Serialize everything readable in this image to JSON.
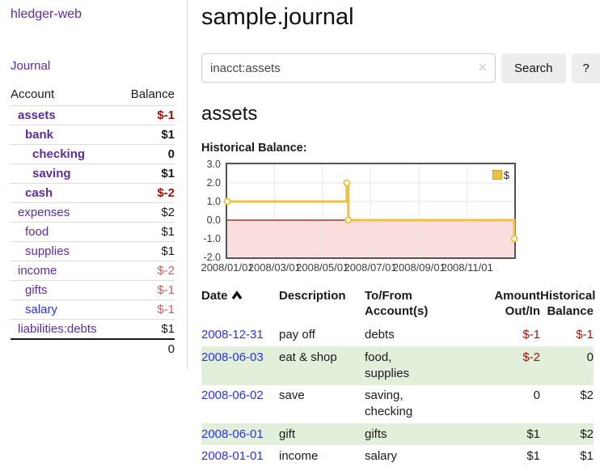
{
  "app": {
    "title": "hledger-web"
  },
  "colors": {
    "link_purple": "#5b2d9e",
    "link_blue": "#2d35d4",
    "negative_strong": "#9d120b",
    "negative_dim": "#c06565",
    "row_green": "#e1efdb",
    "button_bg": "#ededed"
  },
  "sidebar": {
    "journal_label": "Journal",
    "headers": {
      "account": "Account",
      "balance": "Balance"
    },
    "accounts": [
      {
        "name": "assets",
        "balance": "$-1",
        "name_class": "purple bold ind1",
        "balance_class": "bold negstrong"
      },
      {
        "name": "bank",
        "balance": "$1",
        "name_class": "purple bold ind2",
        "balance_class": "bold"
      },
      {
        "name": "checking",
        "balance": "0",
        "name_class": "purple bold ind3",
        "balance_class": "bold"
      },
      {
        "name": "saving",
        "balance": "$1",
        "name_class": "purple bold ind3",
        "balance_class": "bold"
      },
      {
        "name": "cash",
        "balance": "$-2",
        "name_class": "purple bold ind2",
        "balance_class": "bold negstrong"
      },
      {
        "name": "expenses",
        "balance": "$2",
        "name_class": "purple ind1",
        "balance_class": ""
      },
      {
        "name": "food",
        "balance": "$1",
        "name_class": "purple ind2",
        "balance_class": ""
      },
      {
        "name": "supplies",
        "balance": "$1",
        "name_class": "purple ind2",
        "balance_class": ""
      },
      {
        "name": "income",
        "balance": "$-2",
        "name_class": "purple ind1",
        "balance_class": "negdim"
      },
      {
        "name": "gifts",
        "balance": "$-1",
        "name_class": "purple ind2",
        "balance_class": "negdim"
      },
      {
        "name": "salary",
        "balance": "$-1",
        "name_class": "blue ind2",
        "balance_class": "negdim"
      },
      {
        "name": "liabilities:debts",
        "balance": "$1",
        "name_class": "purple ind1",
        "balance_class": ""
      }
    ],
    "total": "0"
  },
  "main": {
    "title": "sample.journal",
    "search": {
      "value": "inacct:assets",
      "clear_icon": "✕",
      "button_label": "Search",
      "help_label": "?"
    },
    "account_heading": "assets",
    "chart_label": "Historical Balance:",
    "register": {
      "headers": {
        "date": "Date",
        "description": "Description",
        "accounts": "To/From Account(s)",
        "amount": "Amount Out/In",
        "balance": "Historical Balance"
      },
      "rows": [
        {
          "date": "2008-12-31",
          "description": "pay off",
          "accounts": "debts",
          "amount": "$-1",
          "balance": "$-1",
          "amount_class": "neg",
          "balance_class": "neg"
        },
        {
          "date": "2008-06-03",
          "description": "eat & shop",
          "accounts": "food, supplies",
          "amount": "$-2",
          "balance": "0",
          "amount_class": "neg",
          "balance_class": ""
        },
        {
          "date": "2008-06-02",
          "description": "save",
          "accounts": "saving, checking",
          "amount": "0",
          "balance": "$2",
          "amount_class": "",
          "balance_class": ""
        },
        {
          "date": "2008-06-01",
          "description": "gift",
          "accounts": "gifts",
          "amount": "$1",
          "balance": "$2",
          "amount_class": "",
          "balance_class": ""
        },
        {
          "date": "2008-01-01",
          "description": "income",
          "accounts": "salary",
          "amount": "$1",
          "balance": "$1",
          "amount_class": "",
          "balance_class": ""
        }
      ]
    }
  },
  "chart_data": {
    "type": "line",
    "step": true,
    "title": "Historical Balance",
    "series": [
      {
        "name": "$",
        "color": "#edc240",
        "points": [
          [
            "2008-01-01",
            1
          ],
          [
            "2008-06-01",
            2
          ],
          [
            "2008-06-03",
            0
          ],
          [
            "2008-12-31",
            -1
          ]
        ]
      }
    ],
    "x_range": [
      "2008-01-01",
      "2008-12-31"
    ],
    "ylim": [
      -2,
      3
    ],
    "yticks": [
      {
        "v": 3,
        "label": "3.0"
      },
      {
        "v": 2,
        "label": "2.0"
      },
      {
        "v": 1,
        "label": "1.0"
      },
      {
        "v": 0,
        "label": "0.0"
      },
      {
        "v": -1,
        "label": "-1.0"
      },
      {
        "v": -2,
        "label": "-2.0"
      }
    ],
    "xticks": [
      {
        "d": "2008-01-01",
        "label": "2008/01/01"
      },
      {
        "d": "2008-03-01",
        "label": "2008/03/01"
      },
      {
        "d": "2008-05-01",
        "label": "2008/05/01"
      },
      {
        "d": "2008-07-01",
        "label": "2008/07/01"
      },
      {
        "d": "2008-09-01",
        "label": "2008/09/01"
      },
      {
        "d": "2008-11-01",
        "label": "2008/11/01"
      }
    ],
    "grid": true,
    "gridline_color": "#e6e6e6",
    "border_color": "#545454",
    "negative_fill": "#fadddd",
    "zero_line_color": "#8b1510",
    "legend_position": "top-right"
  }
}
